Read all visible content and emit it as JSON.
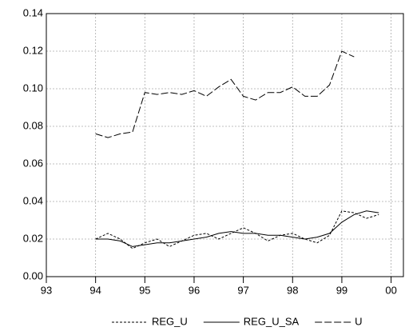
{
  "chart_data": {
    "type": "line",
    "x": [
      1994,
      1994.25,
      1994.5,
      1994.75,
      1995,
      1995.25,
      1995.5,
      1995.75,
      1996,
      1996.25,
      1996.5,
      1996.75,
      1997,
      1997.25,
      1997.5,
      1997.75,
      1998,
      1998.25,
      1998.5,
      1998.75,
      1999,
      1999.25,
      1999.5,
      1999.75
    ],
    "series": [
      {
        "name": "REG_U",
        "color": "#000000",
        "dash": "3,2",
        "values": [
          0.02,
          0.023,
          0.02,
          0.015,
          0.018,
          0.02,
          0.016,
          0.019,
          0.022,
          0.023,
          0.02,
          0.023,
          0.026,
          0.023,
          0.019,
          0.022,
          0.023,
          0.02,
          0.018,
          0.022,
          0.035,
          0.034,
          0.031,
          0.033
        ]
      },
      {
        "name": "REG_U_SA",
        "color": "#000000",
        "dash": "none",
        "values": [
          0.02,
          0.02,
          0.019,
          0.016,
          0.017,
          0.018,
          0.018,
          0.019,
          0.02,
          0.021,
          0.023,
          0.024,
          0.023,
          0.023,
          0.022,
          0.022,
          0.021,
          0.02,
          0.021,
          0.023,
          0.029,
          0.033,
          0.035,
          0.034
        ]
      },
      {
        "name": "U",
        "color": "#000000",
        "dash": "9,3",
        "values": [
          0.076,
          0.074,
          0.076,
          0.077,
          0.098,
          0.097,
          0.098,
          0.097,
          0.099,
          0.096,
          0.101,
          0.105,
          0.096,
          0.094,
          0.098,
          0.098,
          0.101,
          0.096,
          0.096,
          0.102,
          0.12,
          0.117,
          null,
          null
        ]
      }
    ],
    "xlim": [
      1993,
      2000.25
    ],
    "xticks": [
      {
        "value": 1993,
        "label": "93"
      },
      {
        "value": 1994,
        "label": "94"
      },
      {
        "value": 1995,
        "label": "95"
      },
      {
        "value": 1996,
        "label": "96"
      },
      {
        "value": 1997,
        "label": "97"
      },
      {
        "value": 1998,
        "label": "98"
      },
      {
        "value": 1999,
        "label": "99"
      },
      {
        "value": 2000,
        "label": "00"
      }
    ],
    "ylim": [
      0,
      0.14
    ],
    "yticks": [
      {
        "value": 0,
        "label": "0.00"
      },
      0.02,
      0.04,
      0.06,
      0.08,
      {
        "value": 0.1,
        "label": "0.10"
      },
      0.12,
      0.14
    ],
    "grid": true
  }
}
